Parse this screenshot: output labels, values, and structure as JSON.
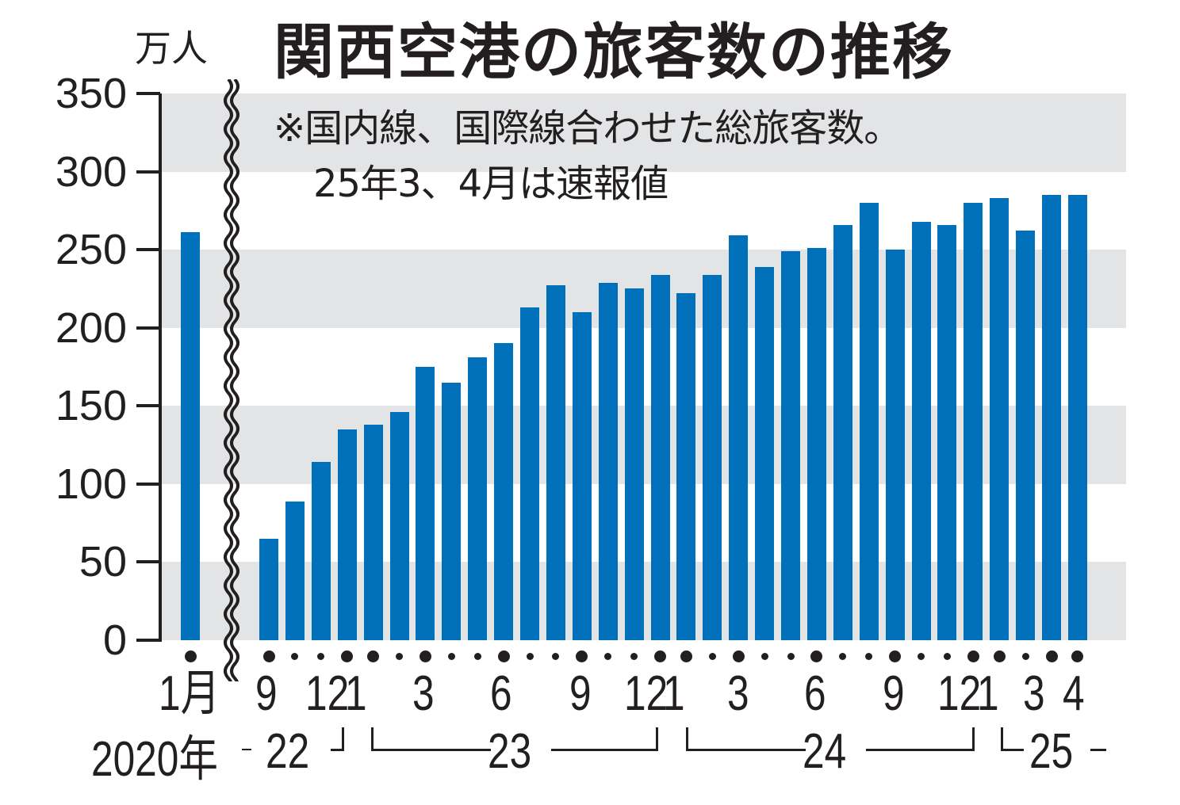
{
  "header": {
    "title": "関西空港の旅客数の推移",
    "unit": "万人",
    "note_line1": "※国内線、国際線合わせた総旅客数。",
    "note_line2": "25年3、4月は速報値"
  },
  "axis": {
    "y_ticks": [
      "350",
      "300",
      "250",
      "200",
      "150",
      "100",
      "50",
      "0"
    ],
    "x_first_label": "1月",
    "x_first_year": "2020年",
    "x_month_labels": [
      "9",
      "12",
      "1",
      "3",
      "6",
      "9",
      "12",
      "1",
      "3",
      "6",
      "9",
      "12",
      "1",
      "3",
      "4"
    ],
    "year_labels": [
      "22",
      "23",
      "24",
      "25"
    ]
  },
  "colors": {
    "bar": "#0070bb",
    "band": "#e3e4e6",
    "text": "#231f20"
  },
  "chart_data": {
    "type": "bar",
    "title": "関西空港の旅客数の推移",
    "subtitle": "※国内線、国際線合わせた総旅客数。25年3、4月は速報値",
    "xlabel": "",
    "ylabel": "万人",
    "ylim": [
      0,
      350
    ],
    "y_ticks": [
      0,
      50,
      100,
      150,
      200,
      250,
      300,
      350
    ],
    "grid": "alternating horizontal bands every 50",
    "axis_break": "between 2020-01 and 2022-09",
    "categories": [
      "2020-01",
      "2022-09",
      "2022-10",
      "2022-11",
      "2022-12",
      "2023-01",
      "2023-02",
      "2023-03",
      "2023-04",
      "2023-05",
      "2023-06",
      "2023-07",
      "2023-08",
      "2023-09",
      "2023-10",
      "2023-11",
      "2023-12",
      "2024-01",
      "2024-02",
      "2024-03",
      "2024-04",
      "2024-05",
      "2024-06",
      "2024-07",
      "2024-08",
      "2024-09",
      "2024-10",
      "2024-11",
      "2024-12",
      "2025-01",
      "2025-02",
      "2025-03",
      "2025-04"
    ],
    "values": [
      261,
      65,
      89,
      114,
      135,
      138,
      146,
      175,
      165,
      181,
      190,
      213,
      227,
      210,
      229,
      225,
      234,
      222,
      234,
      259,
      239,
      249,
      251,
      266,
      280,
      250,
      268,
      266,
      280,
      283,
      262,
      285,
      285
    ]
  }
}
